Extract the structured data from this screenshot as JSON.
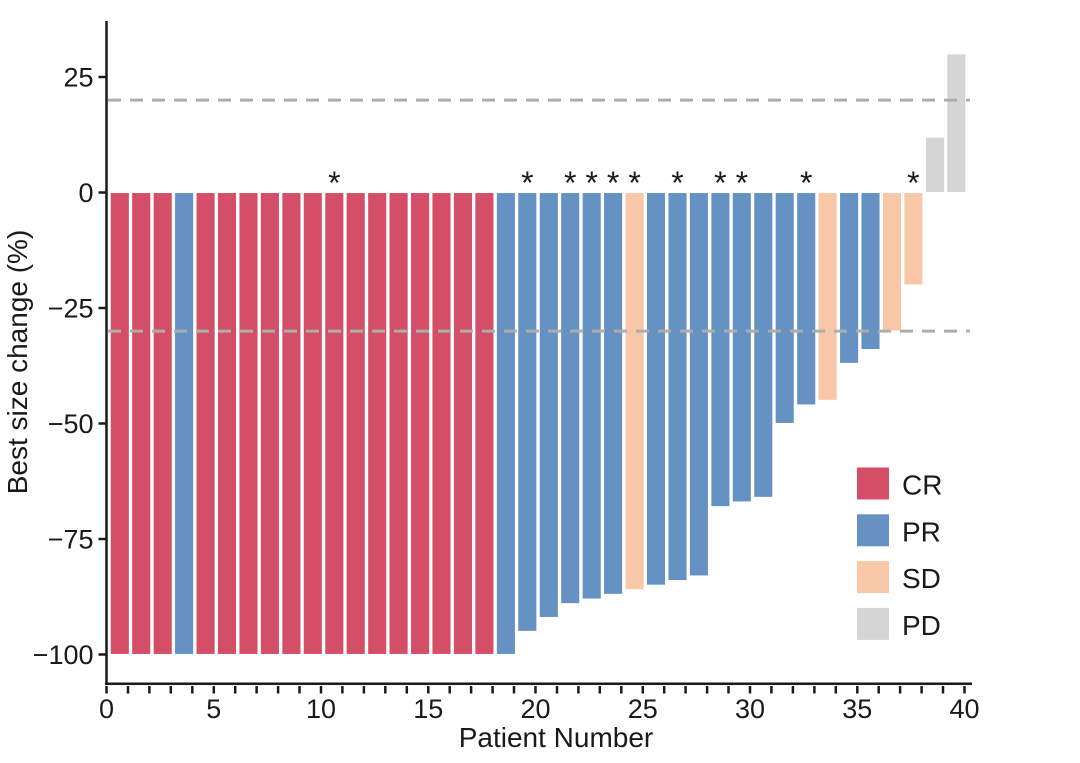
{
  "chart_data": {
    "type": "bar",
    "variant": "waterfall",
    "title": "",
    "xlabel": "Patient Number",
    "ylabel": "Best size change (%)",
    "xlim": [
      0,
      40
    ],
    "ylim": [
      -105,
      38
    ],
    "grid": false,
    "x_ticks": [
      0,
      1,
      2,
      3,
      4,
      5,
      6,
      7,
      8,
      9,
      10,
      11,
      12,
      13,
      14,
      15,
      16,
      17,
      18,
      19,
      20,
      21,
      22,
      23,
      24,
      25,
      26,
      27,
      28,
      29,
      30,
      31,
      32,
      33,
      34,
      35,
      36,
      37,
      38,
      39,
      40
    ],
    "x_tick_labels": [
      {
        "value": 0,
        "label": "0"
      },
      {
        "value": 5,
        "label": "5"
      },
      {
        "value": 10,
        "label": "10"
      },
      {
        "value": 15,
        "label": "15"
      },
      {
        "value": 20,
        "label": "20"
      },
      {
        "value": 25,
        "label": "25"
      },
      {
        "value": 30,
        "label": "30"
      },
      {
        "value": 35,
        "label": "35"
      },
      {
        "value": 40,
        "label": "40"
      }
    ],
    "y_tick_labels": [
      {
        "value": 25,
        "label": "25"
      },
      {
        "value": 0,
        "label": "0"
      },
      {
        "value": -25,
        "label": "−25"
      },
      {
        "value": -50,
        "label": "−50"
      },
      {
        "value": -75,
        "label": "−75"
      },
      {
        "value": -100,
        "label": "−100"
      }
    ],
    "reference_lines": [
      {
        "name": "upper-threshold",
        "value": 20
      },
      {
        "name": "lower-threshold",
        "value": -30
      }
    ],
    "significance_marker": "*",
    "legend_position": "inside-right",
    "legend": [
      {
        "label": "CR",
        "color": "#D34E66"
      },
      {
        "label": "PR",
        "color": "#6691C3"
      },
      {
        "label": "SD",
        "color": "#F8C7A8"
      },
      {
        "label": "PD",
        "color": "#D5D5D5"
      }
    ],
    "patients": [
      {
        "n": 1,
        "response": "CR",
        "value": -100,
        "sig": false
      },
      {
        "n": 2,
        "response": "CR",
        "value": -100,
        "sig": false
      },
      {
        "n": 3,
        "response": "CR",
        "value": -100,
        "sig": false
      },
      {
        "n": 4,
        "response": "PR",
        "value": -100,
        "sig": false
      },
      {
        "n": 5,
        "response": "CR",
        "value": -100,
        "sig": false
      },
      {
        "n": 6,
        "response": "CR",
        "value": -100,
        "sig": false
      },
      {
        "n": 7,
        "response": "CR",
        "value": -100,
        "sig": false
      },
      {
        "n": 8,
        "response": "CR",
        "value": -100,
        "sig": false
      },
      {
        "n": 9,
        "response": "CR",
        "value": -100,
        "sig": false
      },
      {
        "n": 10,
        "response": "CR",
        "value": -100,
        "sig": false
      },
      {
        "n": 11,
        "response": "CR",
        "value": -100,
        "sig": true
      },
      {
        "n": 12,
        "response": "CR",
        "value": -100,
        "sig": false
      },
      {
        "n": 13,
        "response": "CR",
        "value": -100,
        "sig": false
      },
      {
        "n": 14,
        "response": "CR",
        "value": -100,
        "sig": false
      },
      {
        "n": 15,
        "response": "CR",
        "value": -100,
        "sig": false
      },
      {
        "n": 16,
        "response": "CR",
        "value": -100,
        "sig": false
      },
      {
        "n": 17,
        "response": "CR",
        "value": -100,
        "sig": false
      },
      {
        "n": 18,
        "response": "CR",
        "value": -100,
        "sig": false
      },
      {
        "n": 19,
        "response": "PR",
        "value": -100,
        "sig": false
      },
      {
        "n": 20,
        "response": "PR",
        "value": -95,
        "sig": true
      },
      {
        "n": 21,
        "response": "PR",
        "value": -92,
        "sig": false
      },
      {
        "n": 22,
        "response": "PR",
        "value": -89,
        "sig": true
      },
      {
        "n": 23,
        "response": "PR",
        "value": -88,
        "sig": true
      },
      {
        "n": 24,
        "response": "PR",
        "value": -87,
        "sig": true
      },
      {
        "n": 25,
        "response": "SD",
        "value": -86,
        "sig": true
      },
      {
        "n": 26,
        "response": "PR",
        "value": -85,
        "sig": false
      },
      {
        "n": 27,
        "response": "PR",
        "value": -84,
        "sig": true
      },
      {
        "n": 28,
        "response": "PR",
        "value": -83,
        "sig": false
      },
      {
        "n": 29,
        "response": "PR",
        "value": -68,
        "sig": true
      },
      {
        "n": 30,
        "response": "PR",
        "value": -67,
        "sig": true
      },
      {
        "n": 31,
        "response": "PR",
        "value": -66,
        "sig": false
      },
      {
        "n": 32,
        "response": "PR",
        "value": -50,
        "sig": false
      },
      {
        "n": 33,
        "response": "PR",
        "value": -46,
        "sig": true
      },
      {
        "n": 34,
        "response": "SD",
        "value": -45,
        "sig": false
      },
      {
        "n": 35,
        "response": "PR",
        "value": -37,
        "sig": false
      },
      {
        "n": 36,
        "response": "PR",
        "value": -34,
        "sig": false
      },
      {
        "n": 37,
        "response": "SD",
        "value": -30,
        "sig": false
      },
      {
        "n": 38,
        "response": "SD",
        "value": -20,
        "sig": true
      },
      {
        "n": 39,
        "response": "PD",
        "value": 12,
        "sig": false
      },
      {
        "n": 40,
        "response": "PD",
        "value": 30,
        "sig": false
      }
    ],
    "colors": {
      "CR": "#D34E66",
      "PR": "#6691C3",
      "SD": "#F8C7A8",
      "PD": "#D5D5D5",
      "axis": "#1A1A1A",
      "threshold_dash": "#ADADAD",
      "bar_border": "#FFFFFF",
      "background": "#FFFFFF"
    }
  }
}
